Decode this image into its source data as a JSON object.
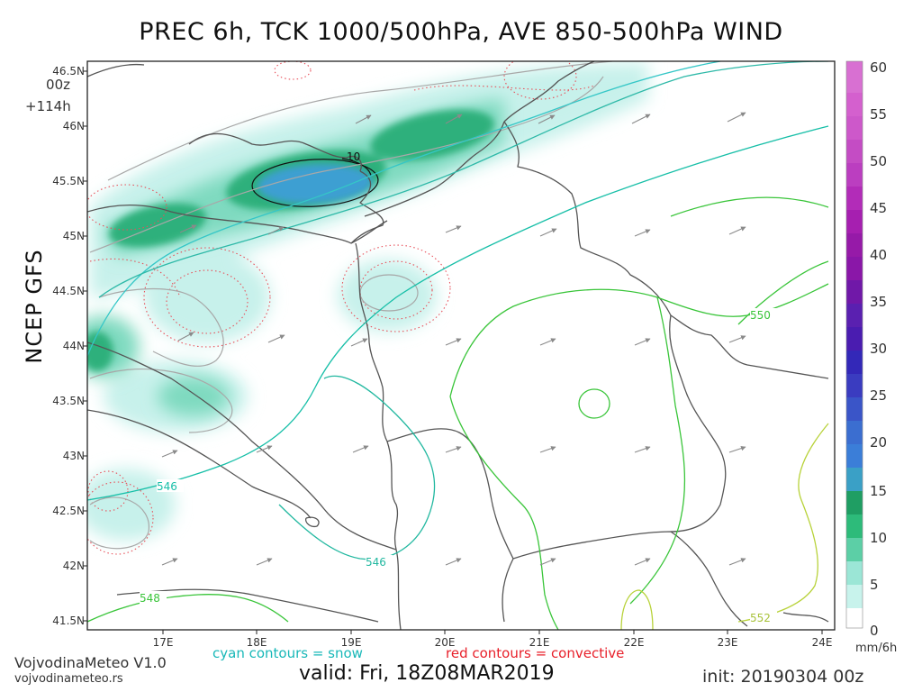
{
  "title": "PREC 6h, TCK 1000/500hPa, AVE 850-500hPa WIND",
  "run": {
    "cycle": "00z",
    "forecast_hour": "+114h"
  },
  "model_label": "NCEP GFS",
  "legend": {
    "snow": "cyan contours = snow",
    "convective": "red contours = convective"
  },
  "brand": {
    "name": "VojvodinaMeteo V1.0",
    "url": "vojvodinameteo.rs"
  },
  "valid": "valid: Fri, 18Z08MAR2019",
  "init": "init: 20190304 00z",
  "colorbar": {
    "unit": "mm/6h",
    "ticks": [
      "60",
      "55",
      "50",
      "45",
      "40",
      "35",
      "30",
      "25",
      "20",
      "15",
      "10",
      "5",
      "0"
    ],
    "colors": [
      "#ffffff",
      "#c8f3ec",
      "#9be6d6",
      "#5ccfa6",
      "#2dbb7a",
      "#1f9e63",
      "#3aa0c6",
      "#3b6ed0",
      "#3a3cc0",
      "#5a20b0",
      "#8a17a8",
      "#a61fb0",
      "#d760d0"
    ]
  },
  "axes": {
    "lat_labels": [
      "46.5N",
      "46N",
      "45.5N",
      "45N",
      "44.5N",
      "44N",
      "43.5N",
      "43N",
      "42.5N",
      "42N",
      "41.5N"
    ],
    "lon_labels": [
      "17E",
      "18E",
      "19E",
      "20E",
      "21E",
      "22E",
      "23E",
      "24E"
    ]
  },
  "contour_labels": {
    "thickness": [
      "546",
      "546",
      "548",
      "550",
      "552"
    ],
    "precip": [
      "10"
    ]
  }
}
